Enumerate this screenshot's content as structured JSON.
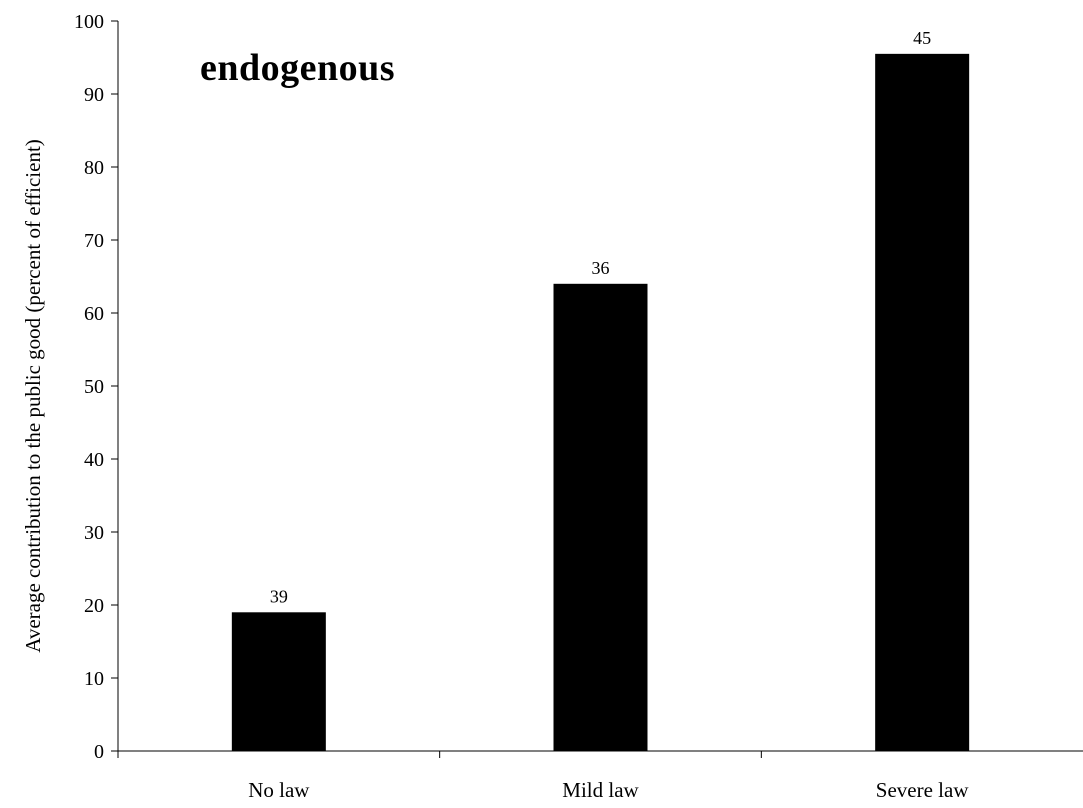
{
  "chart_data": {
    "type": "bar",
    "title": "endogenous",
    "ylabel": "Average contribution to the public good (percent of efficient)",
    "xlabel": "",
    "categories": [
      "No law",
      "Mild law",
      "Severe law"
    ],
    "values": [
      19,
      64,
      95.5
    ],
    "data_labels": [
      "39",
      "36",
      "45"
    ],
    "ylim": [
      0,
      100
    ],
    "yticks": [
      0,
      10,
      20,
      30,
      40,
      50,
      60,
      70,
      80,
      90,
      100
    ],
    "grid": false,
    "legend": "none",
    "colors": {
      "bar": "#000000",
      "axis": "#000000",
      "background": "#ffffff"
    }
  }
}
